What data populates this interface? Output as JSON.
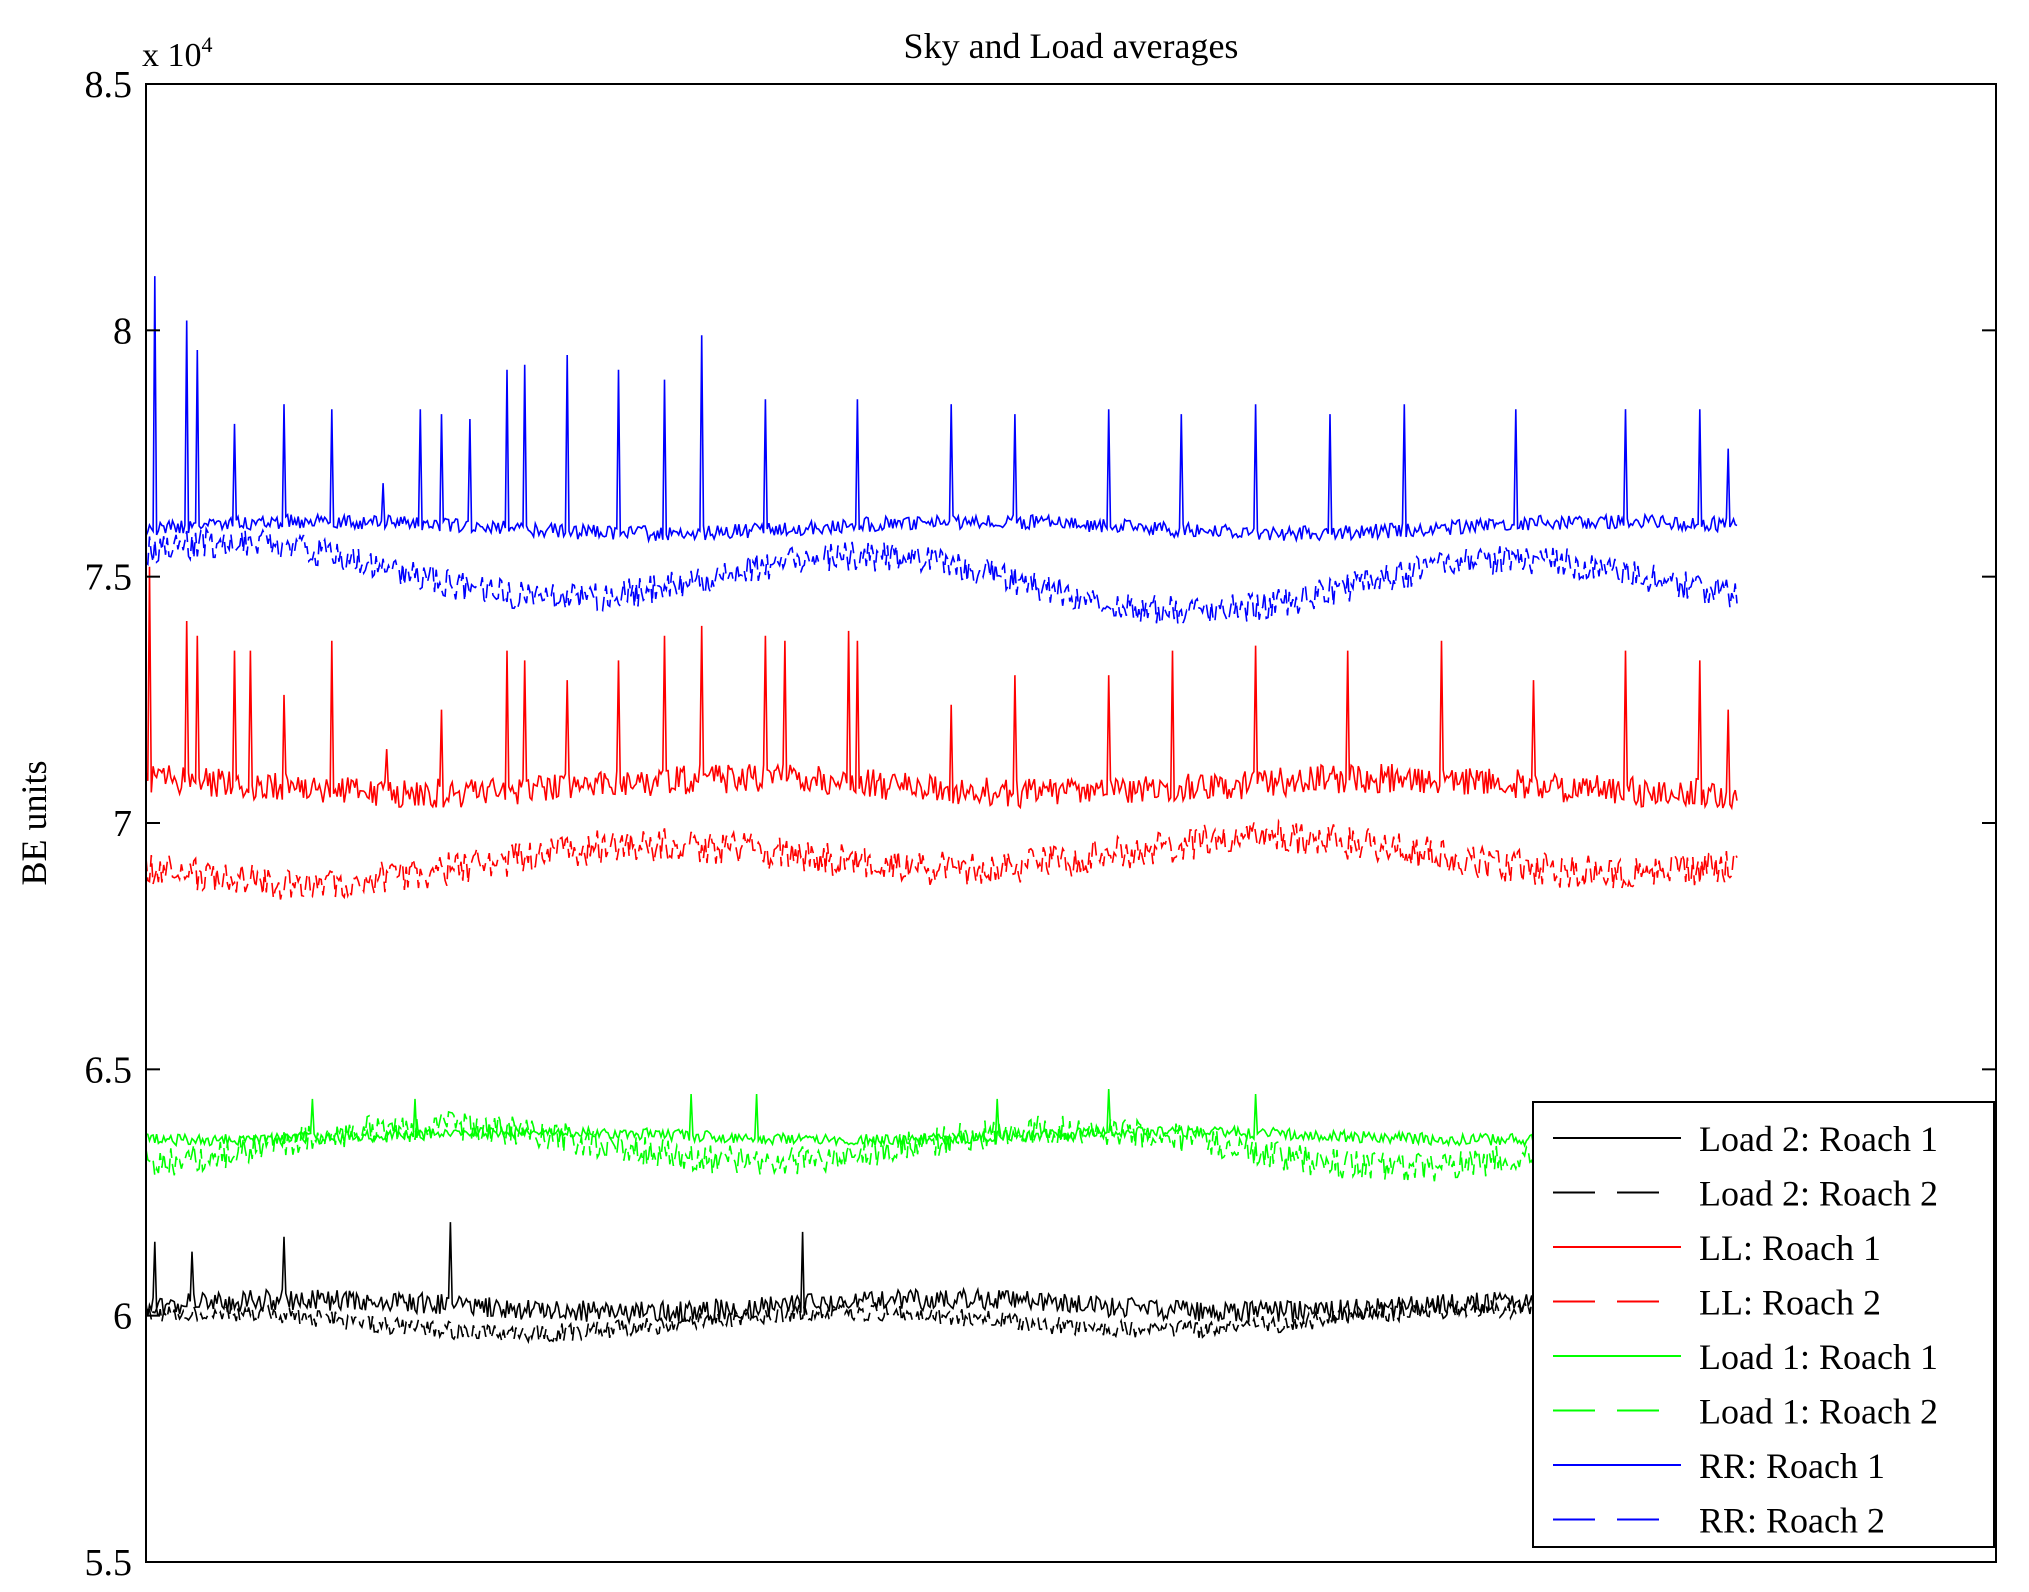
{
  "chart_data": {
    "type": "line",
    "title": "Sky and Load averages",
    "xlabel": "",
    "ylabel": "BE units",
    "exponent_label": "x 10",
    "exponent_power": "4",
    "x_range": [
      0,
      1000
    ],
    "x_data_max": 860,
    "ylim": [
      5.5,
      8.5
    ],
    "yticks": [
      5.5,
      6,
      6.5,
      7,
      7.5,
      8,
      8.5
    ],
    "ytick_labels": [
      "5.5",
      "6",
      "6.5",
      "7",
      "7.5",
      "8",
      "8.5"
    ],
    "grid": false,
    "legend_position": "bottom-right",
    "legend": [
      {
        "label": "Load 2: Roach 1",
        "color": "#000000",
        "dash": "solid"
      },
      {
        "label": "Load 2: Roach 2",
        "color": "#000000",
        "dash": "dashed"
      },
      {
        "label": "LL: Roach 1",
        "color": "#ff0000",
        "dash": "solid"
      },
      {
        "label": "LL: Roach 2",
        "color": "#ff0000",
        "dash": "dashed"
      },
      {
        "label": "Load 1: Roach 1",
        "color": "#00ff00",
        "dash": "solid"
      },
      {
        "label": "Load 1: Roach 2",
        "color": "#00ff00",
        "dash": "dashed"
      },
      {
        "label": "RR: Roach 1",
        "color": "#0000ff",
        "dash": "solid"
      },
      {
        "label": "RR: Roach 2",
        "color": "#0000ff",
        "dash": "dashed"
      }
    ],
    "series": [
      {
        "name": "Load 2: Roach 1",
        "color": "#000000",
        "dash": "solid",
        "mean": 6.02,
        "noise": 0.022,
        "wave": 0.012,
        "drift": 0.0,
        "spikes": [
          [
            5,
            6.15
          ],
          [
            25,
            6.13
          ],
          [
            75,
            6.16
          ],
          [
            165,
            6.19
          ],
          [
            355,
            6.17
          ]
        ]
      },
      {
        "name": "Load 2: Roach 2",
        "color": "#000000",
        "dash": "dashed",
        "mean": 5.99,
        "noise": 0.018,
        "wave": 0.02,
        "drift": -0.005,
        "spikes": []
      },
      {
        "name": "LL: Roach 1",
        "color": "#ff0000",
        "dash": "solid",
        "mean": 7.075,
        "noise": 0.03,
        "wave": 0.015,
        "drift": 0.0,
        "spikes": [
          [
            2,
            7.52
          ],
          [
            22,
            7.41
          ],
          [
            28,
            7.38
          ],
          [
            48,
            7.35
          ],
          [
            56,
            7.35
          ],
          [
            75,
            7.26
          ],
          [
            100,
            7.37
          ],
          [
            130,
            7.15
          ],
          [
            160,
            7.23
          ],
          [
            195,
            7.35
          ],
          [
            205,
            7.33
          ],
          [
            228,
            7.29
          ],
          [
            255,
            7.33
          ],
          [
            280,
            7.38
          ],
          [
            300,
            7.4
          ],
          [
            335,
            7.38
          ],
          [
            345,
            7.37
          ],
          [
            380,
            7.39
          ],
          [
            385,
            7.37
          ],
          [
            435,
            7.24
          ],
          [
            470,
            7.3
          ],
          [
            520,
            7.3
          ],
          [
            555,
            7.35
          ],
          [
            600,
            7.36
          ],
          [
            650,
            7.35
          ],
          [
            700,
            7.37
          ],
          [
            750,
            7.29
          ],
          [
            800,
            7.35
          ],
          [
            840,
            7.33
          ],
          [
            855,
            7.23
          ]
        ]
      },
      {
        "name": "LL: Roach 2",
        "color": "#ff0000",
        "dash": "dashed",
        "mean": 6.92,
        "noise": 0.035,
        "wave": 0.03,
        "drift": -0.02,
        "spikes": []
      },
      {
        "name": "Load 1: Roach 1",
        "color": "#00ff00",
        "dash": "solid",
        "mean": 6.365,
        "noise": 0.012,
        "wave": 0.008,
        "drift": 0.0,
        "spikes": [
          [
            90,
            6.44
          ],
          [
            145,
            6.44
          ],
          [
            295,
            6.45
          ],
          [
            330,
            6.45
          ],
          [
            460,
            6.44
          ],
          [
            520,
            6.46
          ],
          [
            600,
            6.45
          ]
        ]
      },
      {
        "name": "Load 1: Roach 2",
        "color": "#00ff00",
        "dash": "dashed",
        "mean": 6.34,
        "noise": 0.03,
        "wave": 0.035,
        "drift": -0.01,
        "spikes": []
      },
      {
        "name": "RR: Roach 1",
        "color": "#0000ff",
        "dash": "solid",
        "mean": 7.6,
        "noise": 0.015,
        "wave": 0.012,
        "drift": 0.0,
        "spikes": [
          [
            5,
            8.11
          ],
          [
            22,
            8.02
          ],
          [
            28,
            7.96
          ],
          [
            48,
            7.81
          ],
          [
            75,
            7.85
          ],
          [
            100,
            7.84
          ],
          [
            128,
            7.69
          ],
          [
            148,
            7.84
          ],
          [
            160,
            7.83
          ],
          [
            175,
            7.82
          ],
          [
            195,
            7.92
          ],
          [
            205,
            7.93
          ],
          [
            228,
            7.95
          ],
          [
            255,
            7.92
          ],
          [
            280,
            7.9
          ],
          [
            300,
            7.99
          ],
          [
            335,
            7.86
          ],
          [
            385,
            7.86
          ],
          [
            435,
            7.85
          ],
          [
            470,
            7.83
          ],
          [
            520,
            7.84
          ],
          [
            560,
            7.83
          ],
          [
            600,
            7.85
          ],
          [
            640,
            7.83
          ],
          [
            680,
            7.85
          ],
          [
            740,
            7.84
          ],
          [
            800,
            7.84
          ],
          [
            840,
            7.84
          ],
          [
            855,
            7.76
          ]
        ]
      },
      {
        "name": "RR: Roach 2",
        "color": "#0000ff",
        "dash": "dashed",
        "mean": 7.5,
        "noise": 0.03,
        "wave": 0.05,
        "drift": -0.02,
        "spikes": []
      }
    ]
  }
}
